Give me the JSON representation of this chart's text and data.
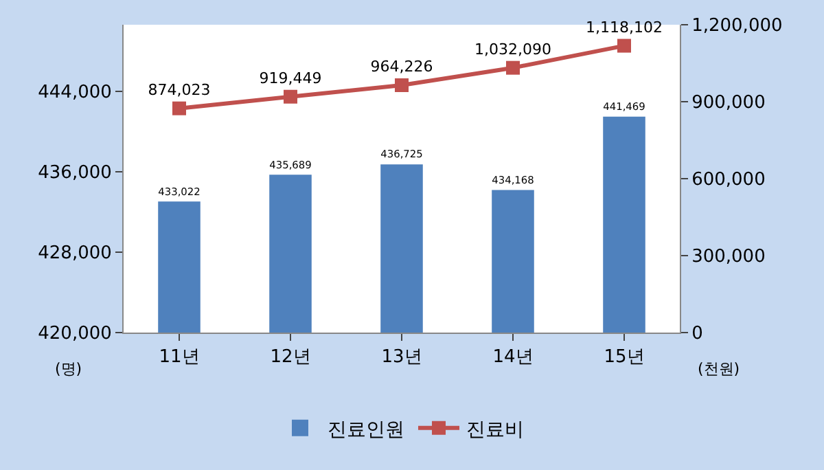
{
  "chart_data": {
    "type": "bar",
    "categories": [
      "11년",
      "12년",
      "13년",
      "14년",
      "15년"
    ],
    "ylabel": "(명)",
    "y2label": "(천원)",
    "ylim": [
      420000,
      450600
    ],
    "yticks": [
      {
        "value": 420000,
        "label": "420,000"
      },
      {
        "value": 428000,
        "label": "428,000"
      },
      {
        "value": 436000,
        "label": "436,000"
      },
      {
        "value": 444000,
        "label": "444,000"
      }
    ],
    "y2lim": [
      0,
      1200000
    ],
    "y2ticks": [
      {
        "value": 0,
        "label": "0"
      },
      {
        "value": 300000,
        "label": "300,000"
      },
      {
        "value": 600000,
        "label": "600,000"
      },
      {
        "value": 900000,
        "label": "900,000"
      },
      {
        "value": 1200000,
        "label": "1,200,000"
      }
    ],
    "series": [
      {
        "name": "진료인원",
        "color": "#4f81bd",
        "values": [
          433022,
          435689,
          436725,
          434168,
          441469
        ],
        "value_labels": [
          "433,022",
          "435,689",
          "436,725",
          "434,168",
          "441,469"
        ]
      },
      {
        "name": "진료비",
        "type": "line",
        "axis": "y2",
        "color": "#c0504d",
        "marker": "square",
        "line_style": "solid",
        "values": [
          874023,
          919449,
          964226,
          1032090,
          1118102
        ],
        "value_labels": [
          "874,023",
          "919,449",
          "964,226",
          "1,032,090",
          "1,118,102"
        ]
      }
    ],
    "grid": false,
    "legend": "bottom"
  }
}
